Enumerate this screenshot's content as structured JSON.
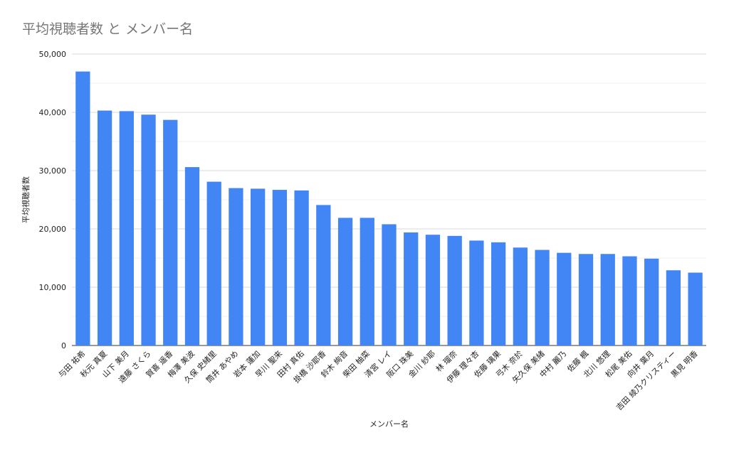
{
  "chart_data": {
    "type": "bar",
    "title": "平均視聴者数 と メンバー名",
    "xlabel": "メンバー名",
    "ylabel": "平均視聴者数",
    "ylim": [
      0,
      50000
    ],
    "yticks": [
      "0",
      "10,000",
      "20,000",
      "30,000",
      "40,000",
      "50,000"
    ],
    "grid": true,
    "legend": "none",
    "bar_color": "#4285F4",
    "categories": [
      "与田 祐希",
      "秋元 真夏",
      "山下 美月",
      "遠藤 さくら",
      "賀喜 遥香",
      "梅澤 美波",
      "久保 史緒里",
      "筒井 あやめ",
      "岩本 蓮加",
      "早川 聖来",
      "田村 真佑",
      "掛橋 沙耶香",
      "鈴木 絢音",
      "柴田 柚菜",
      "清宮 レイ",
      "阪口 珠美",
      "金川 紗耶",
      "林 瑠奈",
      "伊藤 理々杏",
      "佐藤 璃果",
      "弓木 奈於",
      "矢久保 美緒",
      "中村 麗乃",
      "佐藤 楓",
      "北川 悠理",
      "松尾 美佑",
      "向井 葉月",
      "吉田 綾乃クリスティー",
      "黒見 明香"
    ],
    "values": [
      47000,
      40300,
      40200,
      39600,
      38700,
      30600,
      28100,
      27000,
      26900,
      26700,
      26600,
      24100,
      21900,
      21900,
      20800,
      19400,
      19000,
      18800,
      18000,
      17700,
      16800,
      16400,
      15900,
      15700,
      15700,
      15300,
      14900,
      12900,
      12500
    ]
  }
}
